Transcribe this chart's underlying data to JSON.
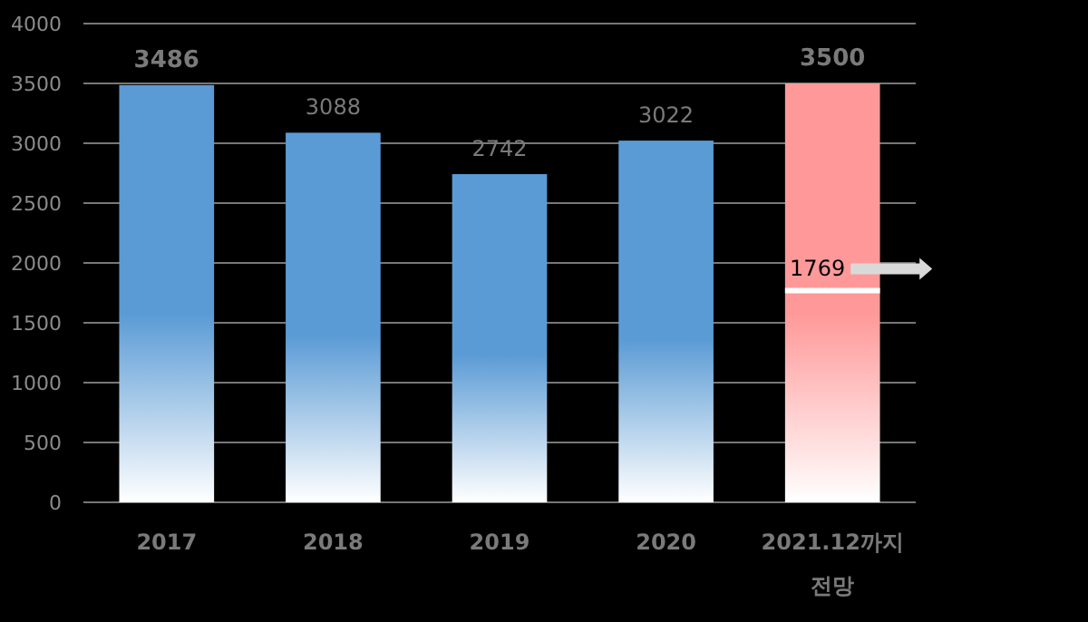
{
  "chart_data": {
    "type": "bar",
    "categories": [
      "2017",
      "2018",
      "2019",
      "2020",
      "2021.12까지 전망"
    ],
    "values": [
      3486,
      3088,
      2742,
      3022,
      3500
    ],
    "colors": [
      "#5b9bd5",
      "#5b9bd5",
      "#5b9bd5",
      "#5b9bd5",
      "#ff9999"
    ],
    "ylim": [
      0,
      4000
    ],
    "yticks": [
      0,
      500,
      1000,
      1500,
      2000,
      2500,
      3000,
      3500,
      4000
    ],
    "grid": "y",
    "data_labels": true,
    "ref_lines": [
      {
        "axis": "y",
        "value": 1769,
        "label": "1769",
        "color": "#ffffff"
      }
    ]
  }
}
